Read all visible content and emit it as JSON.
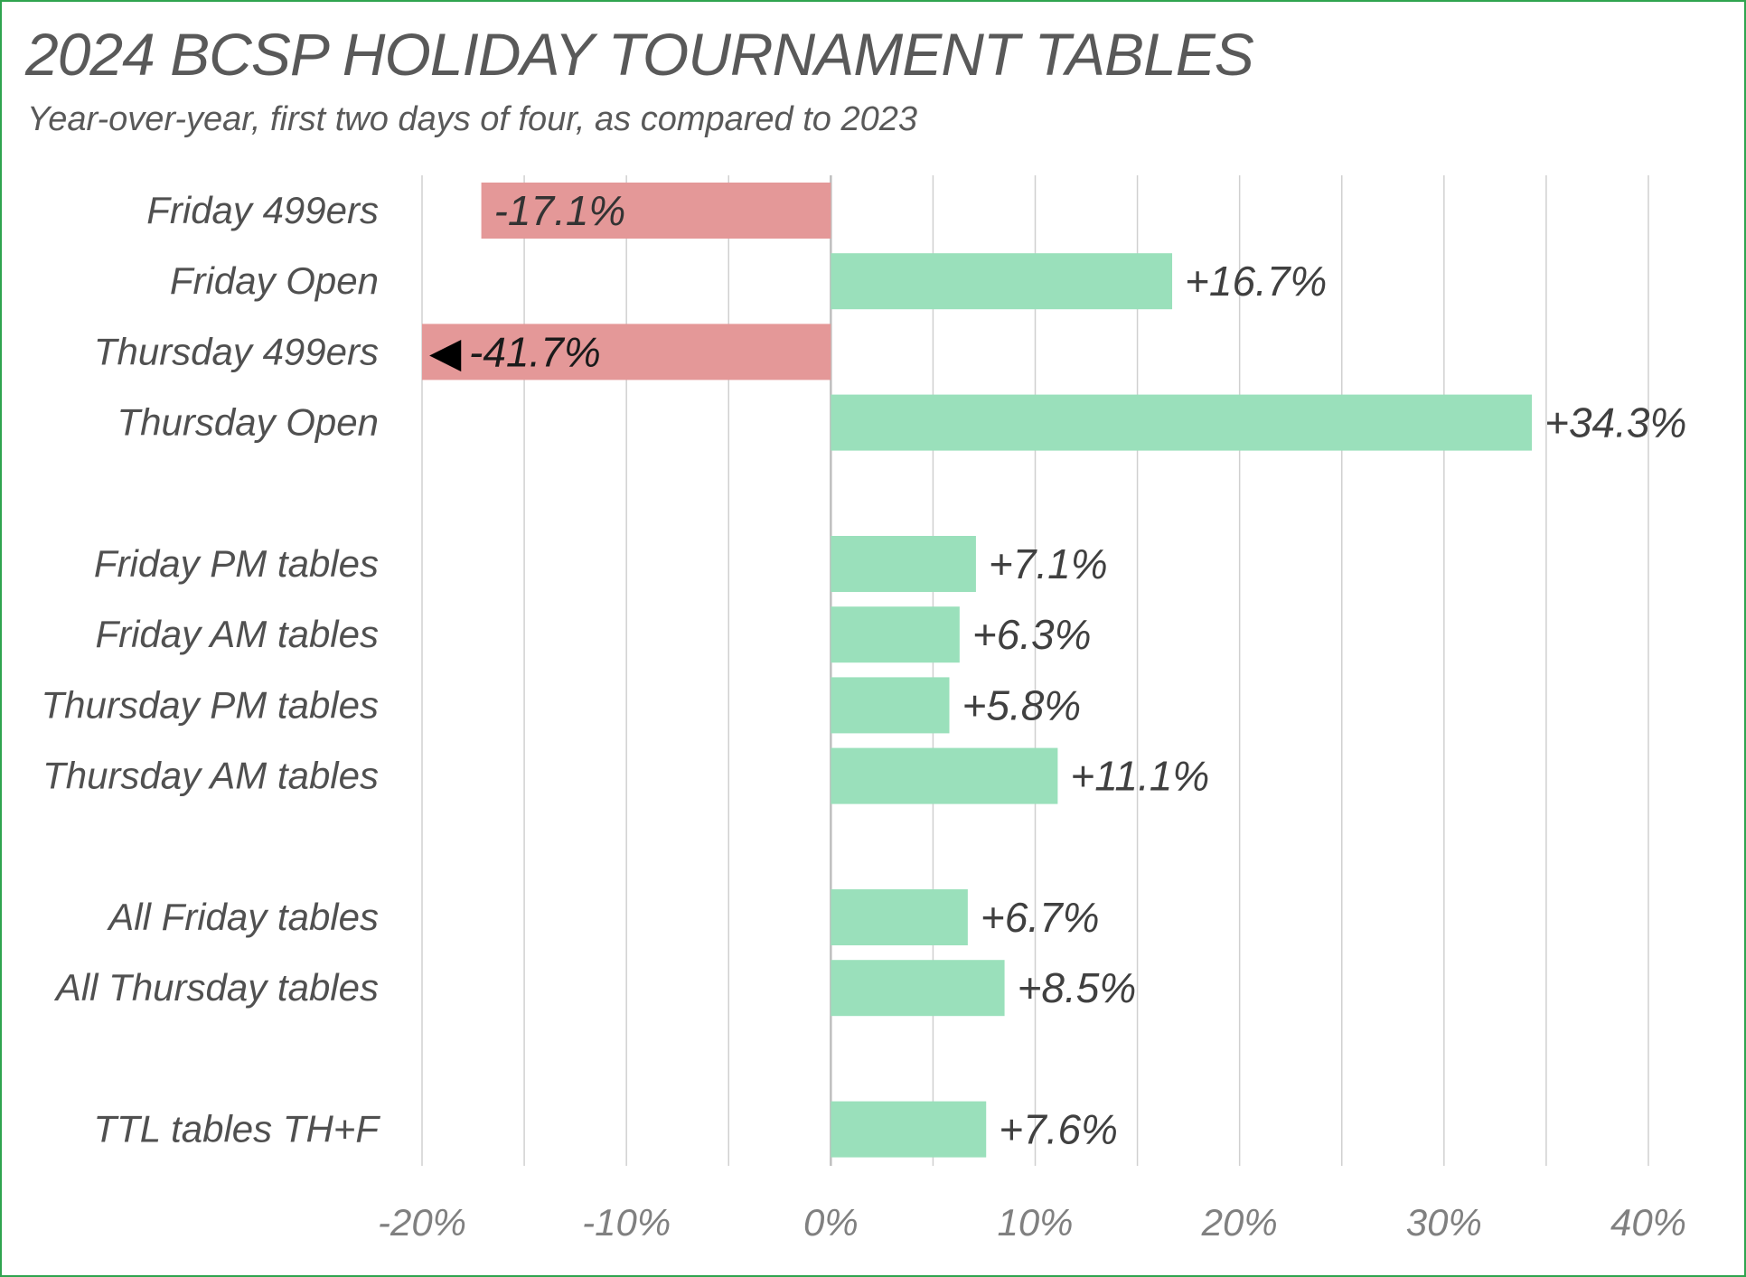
{
  "colors": {
    "positive": "#9ae0bb",
    "negative": "#e49898",
    "grid": "#d0d0d0",
    "axis": "#bfbfbf",
    "border": "#2fa44f",
    "overflow_marker": "#000000"
  },
  "chart_data": {
    "type": "bar",
    "orientation": "horizontal",
    "title": "2024 BCSP HOLIDAY TOURNAMENT TABLES",
    "subtitle": "Year-over-year, first two days of four, as compared to 2023",
    "xlim": [
      -20,
      40
    ],
    "x_ticks": [
      -20,
      -15,
      -10,
      -5,
      0,
      5,
      10,
      15,
      20,
      25,
      30,
      35,
      40
    ],
    "x_tick_labels": [
      {
        "value": -20,
        "label": "-20%"
      },
      {
        "value": -10,
        "label": "-10%"
      },
      {
        "value": 0,
        "label": "0%"
      },
      {
        "value": 10,
        "label": "10%"
      },
      {
        "value": 20,
        "label": "20%"
      },
      {
        "value": 30,
        "label": "30%"
      },
      {
        "value": 40,
        "label": "40%"
      }
    ],
    "grid": true,
    "categories": [
      {
        "label": "Friday 499ers",
        "value": -17.1,
        "data_label": "-17.1%"
      },
      {
        "label": "Friday Open",
        "value": 16.7,
        "data_label": "+16.7%"
      },
      {
        "label": "Thursday 499ers",
        "value": -41.7,
        "data_label": "-41.7%",
        "clipped": true,
        "overflow_marker": "◀"
      },
      {
        "label": "Thursday Open",
        "value": 34.3,
        "data_label": "+34.3%"
      },
      {
        "label": "",
        "value": null,
        "data_label": ""
      },
      {
        "label": "Friday PM tables",
        "value": 7.1,
        "data_label": "+7.1%"
      },
      {
        "label": "Friday AM tables",
        "value": 6.3,
        "data_label": "+6.3%"
      },
      {
        "label": "Thursday PM tables",
        "value": 5.8,
        "data_label": "+5.8%"
      },
      {
        "label": "Thursday AM tables",
        "value": 11.1,
        "data_label": "+11.1%"
      },
      {
        "label": "",
        "value": null,
        "data_label": ""
      },
      {
        "label": "All Friday tables",
        "value": 6.7,
        "data_label": "+6.7%"
      },
      {
        "label": "All Thursday tables",
        "value": 8.5,
        "data_label": "+8.5%"
      },
      {
        "label": "",
        "value": null,
        "data_label": ""
      },
      {
        "label": "TTL tables TH+F",
        "value": 7.6,
        "data_label": "+7.6%"
      }
    ]
  }
}
